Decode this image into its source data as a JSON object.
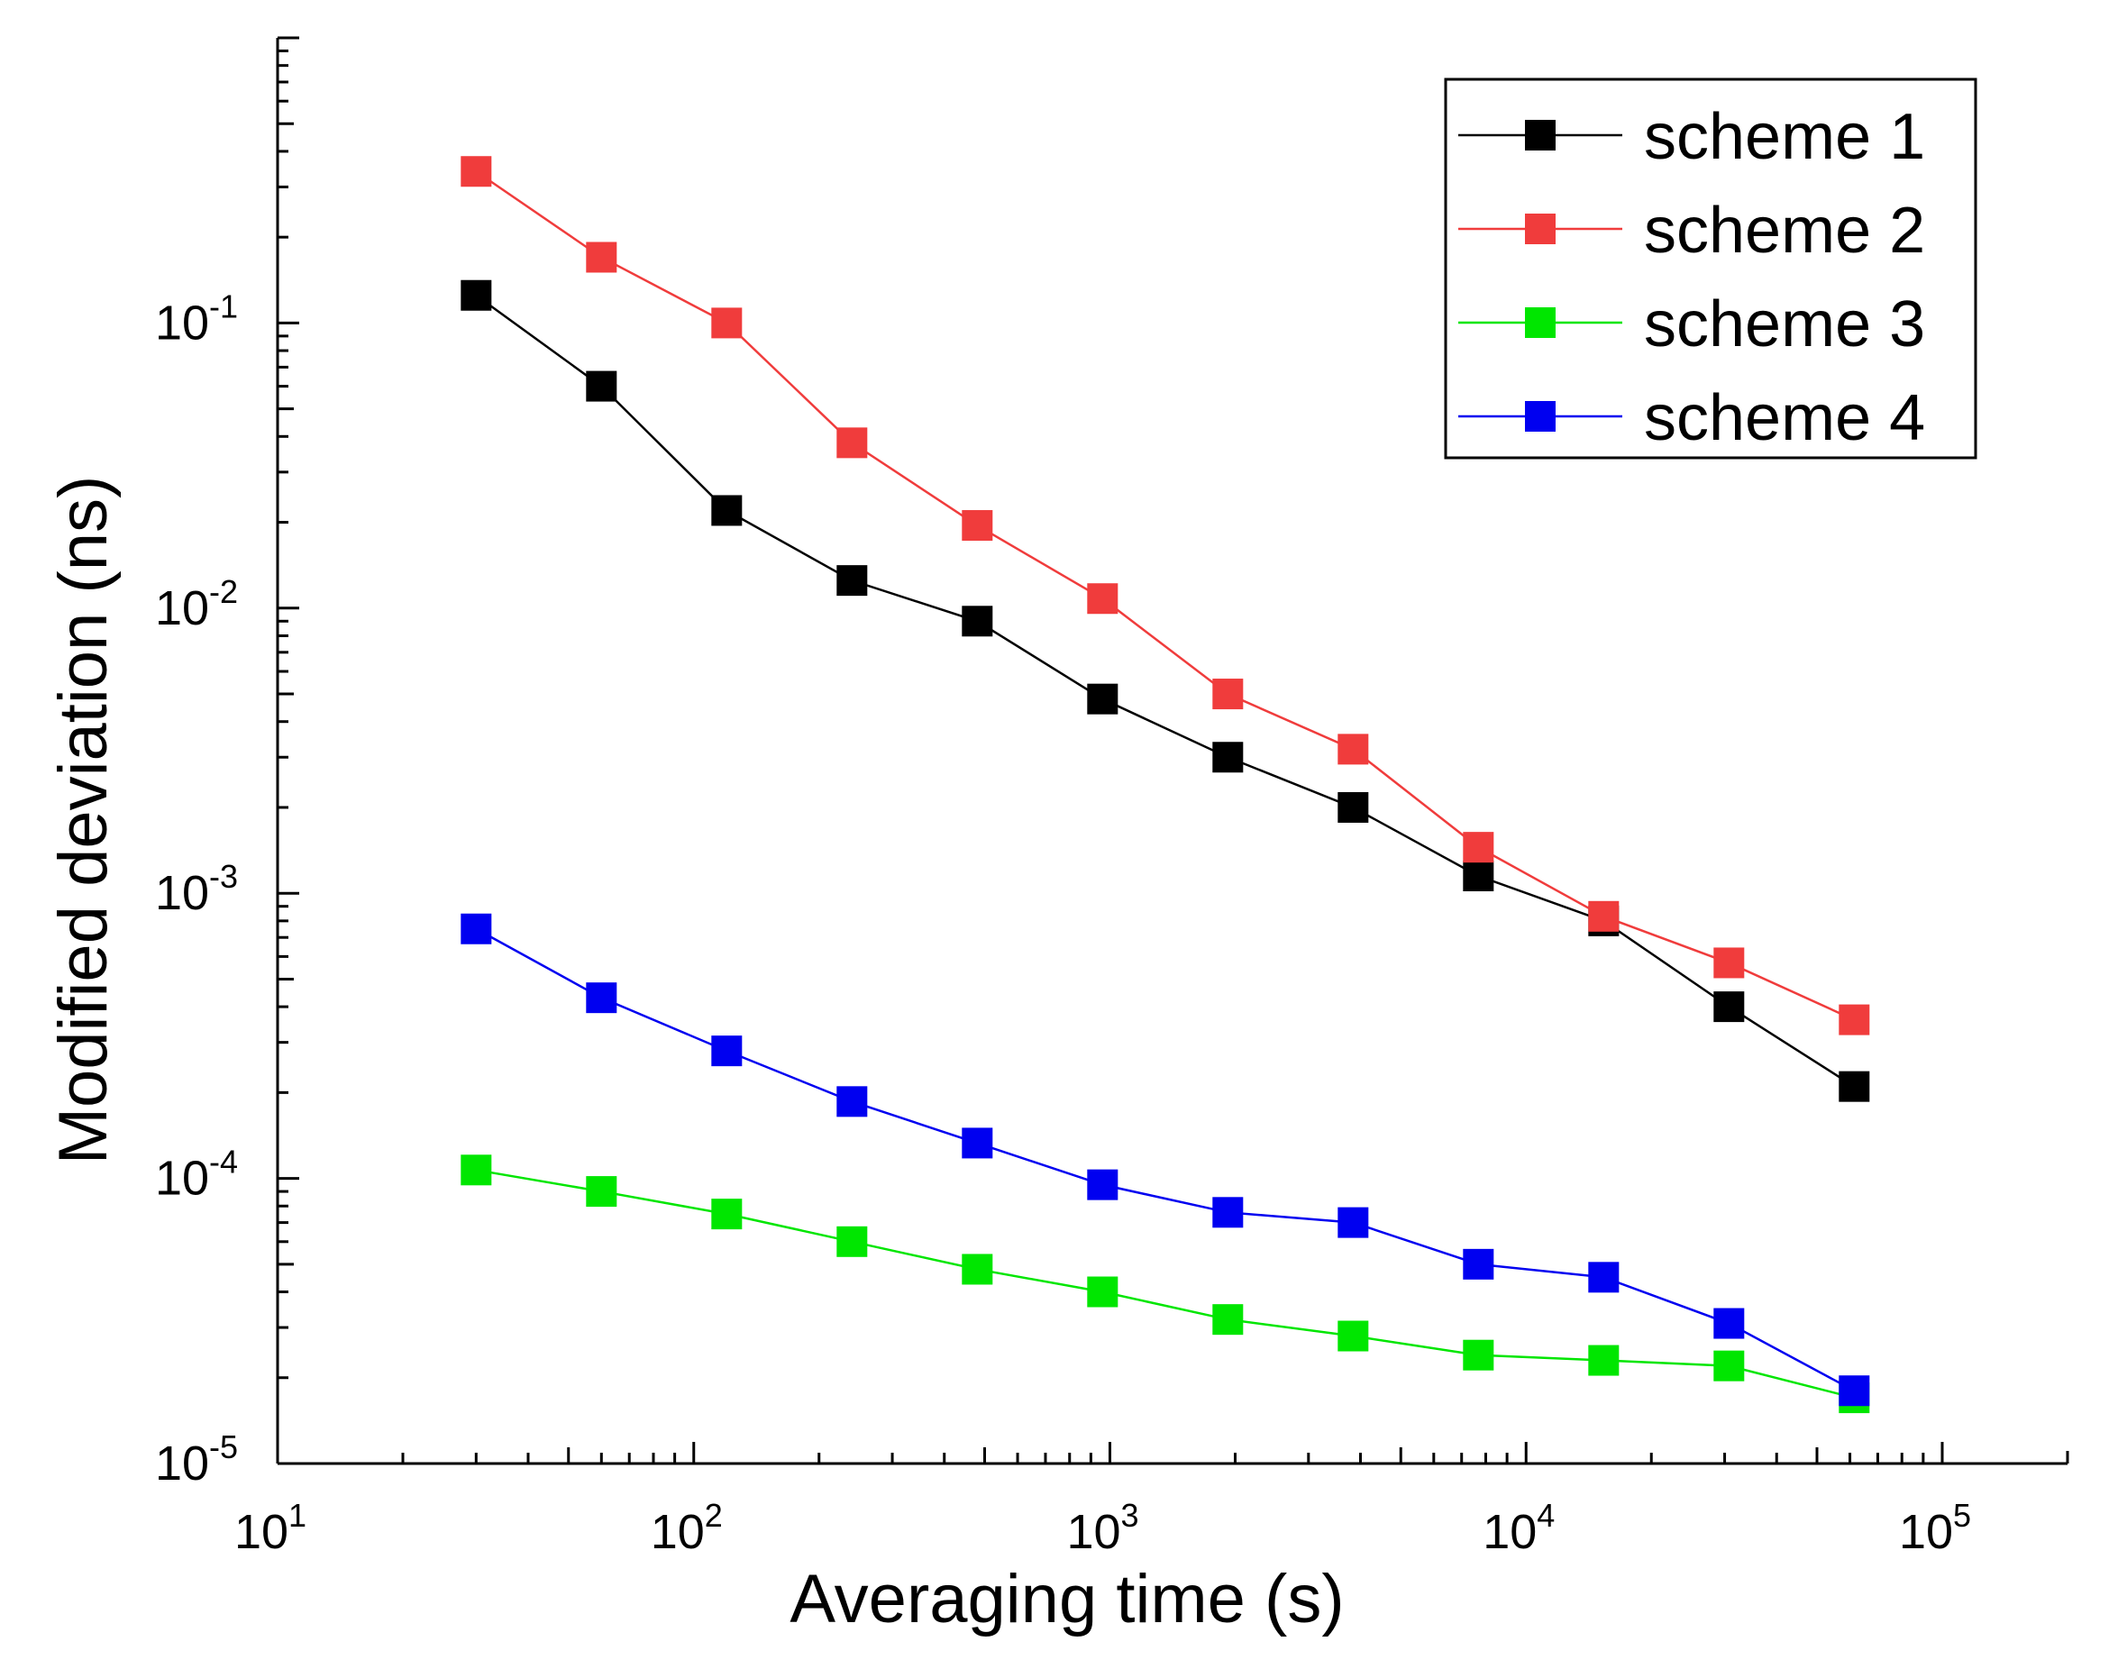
{
  "chart_data": {
    "type": "line",
    "title": "",
    "xlabel": "Averaging time (s)",
    "ylabel": "Modified deviation (ns)",
    "xscale": "log",
    "yscale": "log",
    "xlim": [
      10,
      200000
    ],
    "ylim": [
      1e-05,
      1
    ],
    "x_ticks": [
      {
        "base": "10",
        "exp": "1",
        "value": 10
      },
      {
        "base": "10",
        "exp": "2",
        "value": 100
      },
      {
        "base": "10",
        "exp": "3",
        "value": 1000
      },
      {
        "base": "10",
        "exp": "4",
        "value": 10000
      },
      {
        "base": "10",
        "exp": "5",
        "value": 100000
      }
    ],
    "y_ticks": [
      {
        "base": "10",
        "exp": "-5",
        "value": 1e-05
      },
      {
        "base": "10",
        "exp": "-4",
        "value": 0.0001
      },
      {
        "base": "10",
        "exp": "-3",
        "value": 0.001
      },
      {
        "base": "10",
        "exp": "-2",
        "value": 0.01
      },
      {
        "base": "10",
        "exp": "-1",
        "value": 0.1
      }
    ],
    "x": [
      30,
      60,
      120,
      240,
      480,
      960,
      1920,
      3840,
      7680,
      15360,
      30720,
      61440
    ],
    "series": [
      {
        "name": "scheme 1",
        "color": "#000000",
        "values": [
          0.125,
          0.06,
          0.022,
          0.0125,
          0.009,
          0.0048,
          0.003,
          0.002,
          0.00115,
          0.0008,
          0.0004,
          0.00021
        ]
      },
      {
        "name": "scheme 2",
        "color": "#f03c3c",
        "values": [
          0.34,
          0.17,
          0.1,
          0.038,
          0.0195,
          0.0108,
          0.005,
          0.0032,
          0.00145,
          0.00083,
          0.00057,
          0.00036
        ]
      },
      {
        "name": "scheme 3",
        "color": "#00e600",
        "values": [
          0.000107,
          9e-05,
          7.5e-05,
          6e-05,
          4.8e-05,
          4e-05,
          3.2e-05,
          2.8e-05,
          2.4e-05,
          2.3e-05,
          2.2e-05,
          1.7e-05
        ]
      },
      {
        "name": "scheme 4",
        "color": "#0000f0",
        "values": [
          0.00075,
          0.00043,
          0.00028,
          0.000186,
          0.000133,
          9.5e-05,
          7.6e-05,
          7e-05,
          5e-05,
          4.5e-05,
          3.1e-05,
          1.8e-05
        ]
      }
    ],
    "legend_position": "top-right",
    "grid": false
  }
}
